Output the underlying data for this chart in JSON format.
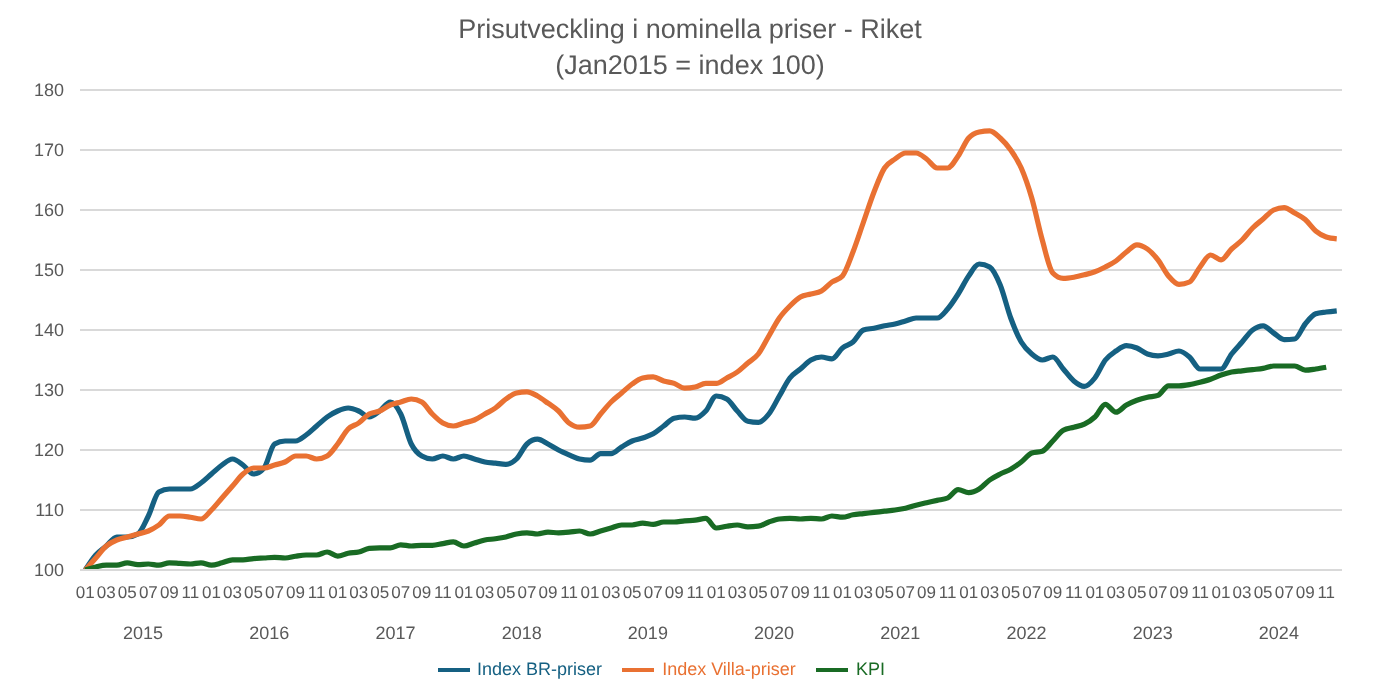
{
  "chart_data": {
    "type": "line",
    "title": "Prisutveckling i nominella priser - Riket",
    "subtitle": "(Jan2015 = index 100)",
    "categories": [
      "01",
      null,
      "03",
      null,
      "05",
      null,
      "07",
      null,
      "09",
      null,
      "11",
      null,
      "01",
      null,
      "03",
      null,
      "05",
      null,
      "07",
      null,
      "09",
      null,
      "11",
      null,
      "01",
      null,
      "03",
      null,
      "05",
      null,
      "07",
      null,
      "09",
      null,
      "11",
      null,
      "01",
      null,
      "03",
      null,
      "05",
      null,
      "07",
      null,
      "09",
      null,
      "11",
      null,
      "01",
      null,
      "03",
      null,
      "05",
      null,
      "07",
      null,
      "09",
      null,
      "11",
      null,
      "01",
      null,
      "03",
      null,
      "05",
      null,
      "07",
      null,
      "09",
      null,
      "11",
      null,
      "01",
      null,
      "03",
      null,
      "05",
      null,
      "07",
      null,
      "09",
      null,
      "11",
      null,
      "01",
      null,
      "03",
      null,
      "05",
      null,
      "07",
      null,
      "09",
      null,
      "11",
      null,
      "01",
      null,
      "03",
      null,
      "05",
      null,
      "07",
      null,
      "09",
      null,
      "11",
      null,
      "01",
      null,
      "03",
      null,
      "05",
      null,
      "07",
      null,
      "09",
      null,
      "11",
      null
    ],
    "annotations": [
      "2015",
      "2016",
      "2017",
      "2018",
      "2019",
      "2020",
      "2021",
      "2022",
      "2023",
      "2024"
    ],
    "series": [
      {
        "name": "Index BR-priser",
        "color": "#156082",
        "values": [
          100,
          102.5,
          104,
          105.5,
          105.5,
          106,
          109,
          113,
          113.5,
          113.5,
          113.5,
          114.5,
          116,
          117.5,
          118.5,
          117.5,
          116,
          117,
          121,
          121.5,
          121.5,
          122.5,
          124,
          125.5,
          126.5,
          127,
          126.5,
          125.5,
          126.5,
          128,
          126,
          121,
          119,
          118.5,
          119,
          118.5,
          119,
          118.5,
          118,
          117.8,
          117.6,
          118.5,
          121,
          121.8,
          121,
          120,
          119.2,
          118.5,
          118.3,
          119.4,
          119.4,
          120.5,
          121.5,
          122,
          122.7,
          124,
          125.3,
          125.5,
          125.3,
          126.5,
          129,
          128.5,
          126.5,
          124.8,
          124.6,
          126,
          129,
          132,
          133.5,
          135,
          135.5,
          135.2,
          137,
          138,
          140,
          140.3,
          140.7,
          141,
          141.5,
          142,
          142,
          142,
          143.5,
          146,
          149,
          151,
          150.5,
          147.5,
          142,
          138,
          136,
          135,
          135.5,
          133.5,
          131.5,
          130.6,
          132,
          135,
          136.5,
          137.4,
          137,
          136,
          135.7,
          136,
          136.5,
          135.5,
          133.5,
          133.5,
          133.5,
          136,
          138,
          140,
          140.7,
          139.5,
          138.4,
          138.5,
          141,
          142.7,
          143,
          143.2
        ]
      },
      {
        "name": "Index Villa-priser",
        "color": "#e97132",
        "values": [
          100,
          102,
          104,
          105,
          105.5,
          106,
          106.5,
          107.5,
          109,
          109,
          108.8,
          108.5,
          110,
          112,
          114,
          116,
          117,
          117,
          117.5,
          118,
          119,
          119,
          118.5,
          119,
          121,
          123.5,
          124.5,
          126,
          126.5,
          127.5,
          128,
          128.5,
          128,
          126,
          124.5,
          124,
          124.5,
          125,
          126,
          127,
          128.5,
          129.5,
          129.7,
          129,
          127.8,
          126.5,
          124.5,
          123.8,
          124,
          126,
          128,
          129.5,
          131,
          132,
          132.2,
          131.5,
          131.1,
          130.3,
          130.5,
          131.1,
          131.1,
          132,
          133,
          134.5,
          136,
          139,
          142,
          144,
          145.5,
          146,
          146.5,
          148,
          149,
          153,
          158,
          163,
          167,
          168.5,
          169.5,
          169.5,
          168.5,
          167,
          167,
          169,
          172,
          173,
          173.2,
          172,
          170,
          167,
          162,
          155,
          149.5,
          148.6,
          148.8,
          149.2,
          149.7,
          150.5,
          151.5,
          153,
          154.2,
          153.5,
          151.7,
          149,
          147.6,
          148,
          150.5,
          152.5,
          151.7,
          153.5,
          155,
          157,
          158.5,
          160,
          160.4,
          159.5,
          158.4,
          156.5,
          155.5,
          155.2
        ]
      },
      {
        "name": "KPI",
        "color": "#196b24",
        "values": [
          100,
          100.5,
          100.8,
          100.8,
          101.2,
          100.9,
          101,
          100.8,
          101.2,
          101.1,
          101,
          101.2,
          100.8,
          101.2,
          101.7,
          101.7,
          101.9,
          102,
          102.1,
          102,
          102.3,
          102.5,
          102.5,
          103,
          102.3,
          102.8,
          103,
          103.6,
          103.7,
          103.7,
          104.2,
          104,
          104.1,
          104.1,
          104.4,
          104.7,
          104,
          104.5,
          105,
          105.2,
          105.5,
          106,
          106.2,
          106,
          106.3,
          106.2,
          106.3,
          106.5,
          106,
          106.5,
          107,
          107.5,
          107.5,
          107.8,
          107.6,
          108,
          108,
          108.2,
          108.3,
          108.6,
          107,
          107.3,
          107.5,
          107.2,
          107.3,
          108,
          108.5,
          108.6,
          108.5,
          108.6,
          108.5,
          109,
          108.8,
          109.2,
          109.4,
          109.6,
          109.8,
          110,
          110.3,
          110.8,
          111.2,
          111.6,
          112,
          113.4,
          112.9,
          113.5,
          115,
          116,
          116.8,
          118,
          119.5,
          119.8,
          121.5,
          123.3,
          123.8,
          124.3,
          125.5,
          127.6,
          126.3,
          127.5,
          128.3,
          128.8,
          129.1,
          130.7,
          130.7,
          130.9,
          131.3,
          131.8,
          132.5,
          133,
          133.2,
          133.4,
          133.6,
          134,
          134,
          134,
          133.3,
          133.5,
          133.8,
          null
        ]
      }
    ],
    "ylim": [
      100,
      180
    ],
    "yticks": [
      100,
      110,
      120,
      130,
      140,
      150,
      160,
      170,
      180
    ],
    "grid": "y",
    "legend": "bottom",
    "marker": "none",
    "line_style": "solid"
  }
}
